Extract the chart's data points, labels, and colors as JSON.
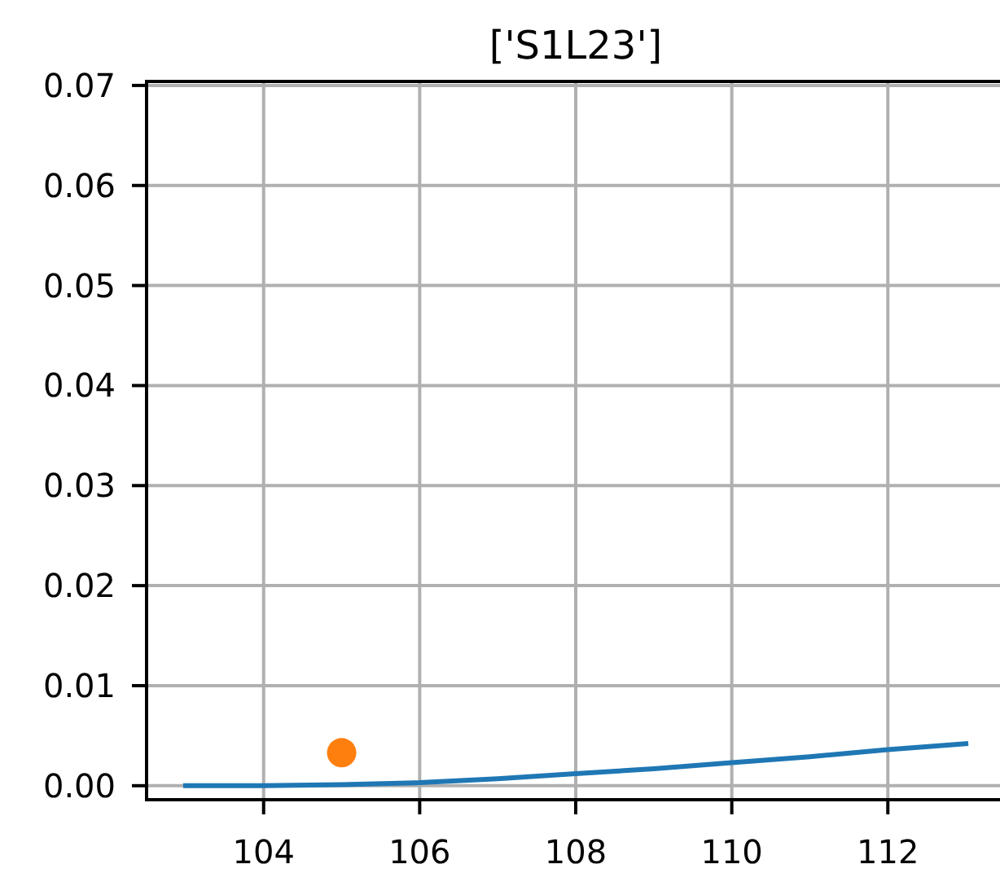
{
  "chart_data": {
    "type": "line",
    "title": "['S1L23']",
    "x": [
      103,
      104,
      105,
      106,
      107,
      108,
      109,
      110,
      111,
      112,
      113
    ],
    "series": [
      {
        "color": "#1f77b4",
        "values": [
          0,
          0,
          0.0001,
          0.0003,
          0.0007,
          0.0012,
          0.0017,
          0.0023,
          0.0029,
          0.0036,
          0.0042
        ]
      },
      {
        "type": "scatter",
        "x": [
          105
        ],
        "color": "#ff7f0e",
        "marker": "circle",
        "values": [
          0.0033
        ]
      }
    ],
    "xlim": [
      102.5,
      113.5
    ],
    "ylim": [
      -0.0014,
      0.0704
    ],
    "xticks": [
      104,
      106,
      108,
      110,
      112
    ],
    "yticks": [
      {
        "value": 0,
        "label": "0.00"
      },
      0.01,
      0.02,
      0.03,
      0.04,
      0.05,
      0.06,
      0.07
    ],
    "grid": true
  }
}
